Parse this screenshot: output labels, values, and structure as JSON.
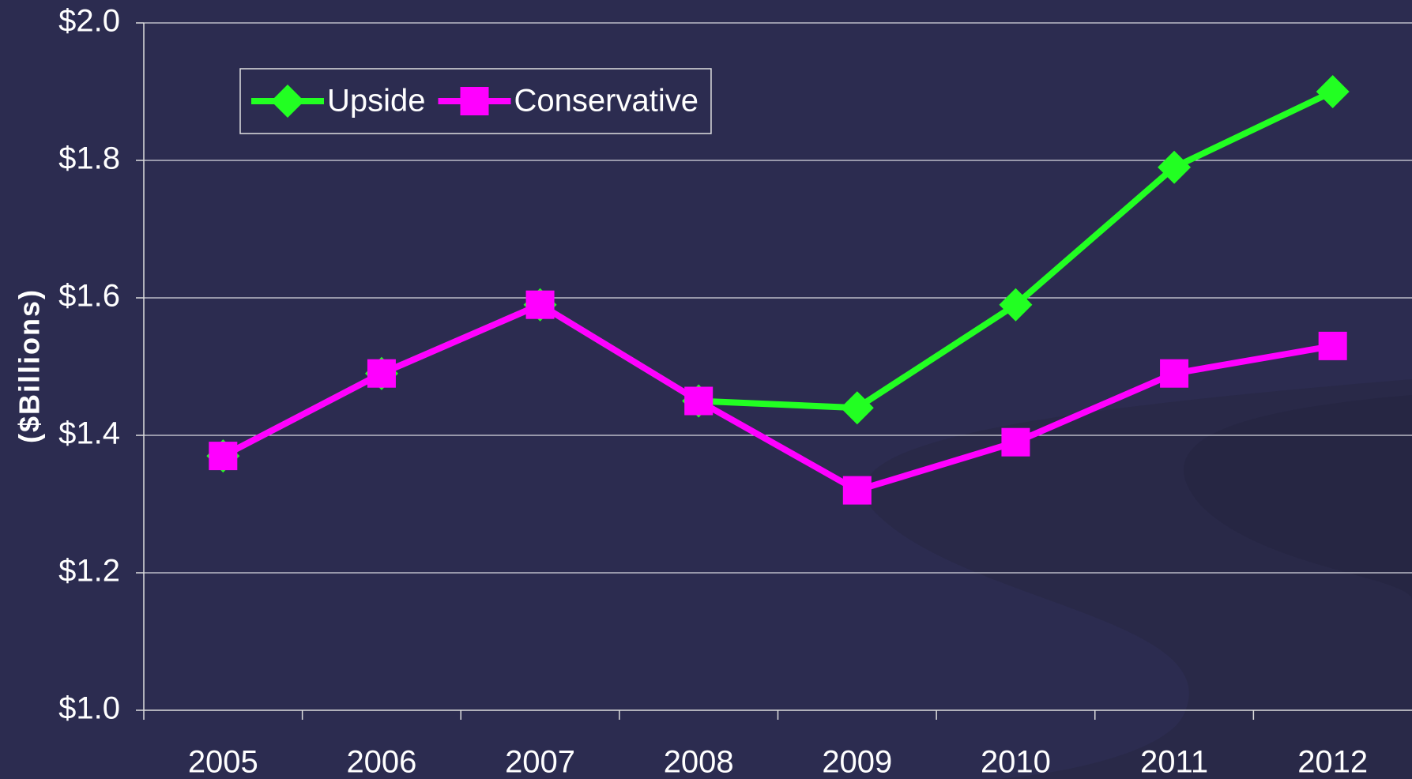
{
  "chart_data": {
    "type": "line",
    "y_label": "($Billions)",
    "categories": [
      "2005",
      "2006",
      "2007",
      "2008",
      "2009",
      "2010",
      "2011",
      "2012"
    ],
    "series": [
      {
        "name": "Upside",
        "color": "#22ff22",
        "marker": "diamond",
        "values": [
          1.37,
          1.49,
          1.59,
          1.45,
          1.44,
          1.59,
          1.79,
          1.9
        ]
      },
      {
        "name": "Conservative",
        "color": "#ff00ff",
        "marker": "square",
        "values": [
          1.37,
          1.49,
          1.59,
          1.45,
          1.32,
          1.39,
          1.49,
          1.53
        ]
      }
    ],
    "ylim": [
      1.0,
      2.0
    ],
    "yticks": [
      {
        "value": 1.0,
        "label": "$1.0"
      },
      {
        "value": 1.2,
        "label": "$1.2"
      },
      {
        "value": 1.4,
        "label": "$1.4"
      },
      {
        "value": 1.6,
        "label": "$1.6"
      },
      {
        "value": 1.8,
        "label": "$1.8"
      },
      {
        "value": 2.0,
        "label": "$2.0"
      }
    ],
    "grid": true,
    "legend": "top-left"
  }
}
